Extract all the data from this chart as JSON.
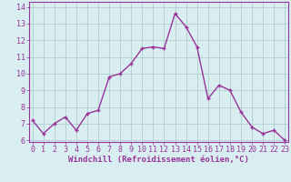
{
  "x": [
    0,
    1,
    2,
    3,
    4,
    5,
    6,
    7,
    8,
    9,
    10,
    11,
    12,
    13,
    14,
    15,
    16,
    17,
    18,
    19,
    20,
    21,
    22,
    23
  ],
  "y": [
    7.2,
    6.4,
    7.0,
    7.4,
    6.6,
    7.6,
    7.8,
    9.8,
    10.0,
    10.6,
    11.5,
    11.6,
    11.5,
    13.6,
    12.8,
    11.6,
    8.5,
    9.3,
    9.0,
    7.7,
    6.8,
    6.4,
    6.6,
    6.0
  ],
  "line_color": "#993399",
  "marker": "+",
  "marker_size": 3,
  "marker_lw": 1.0,
  "bg_color": "#d8eef0",
  "grid_color": "#b0cdd0",
  "xlabel": "Windchill (Refroidissement éolien,°C)",
  "xlabel_color": "#993399",
  "tick_color": "#993399",
  "ylim_min": 6,
  "ylim_max": 14,
  "xlim_min": 0,
  "xlim_max": 23,
  "yticks": [
    6,
    7,
    8,
    9,
    10,
    11,
    12,
    13,
    14
  ],
  "xticks": [
    0,
    1,
    2,
    3,
    4,
    5,
    6,
    7,
    8,
    9,
    10,
    11,
    12,
    13,
    14,
    15,
    16,
    17,
    18,
    19,
    20,
    21,
    22,
    23
  ],
  "spine_color": "#993399",
  "label_fontsize": 6.5,
  "tick_fontsize": 6.0,
  "line_width": 1.0
}
